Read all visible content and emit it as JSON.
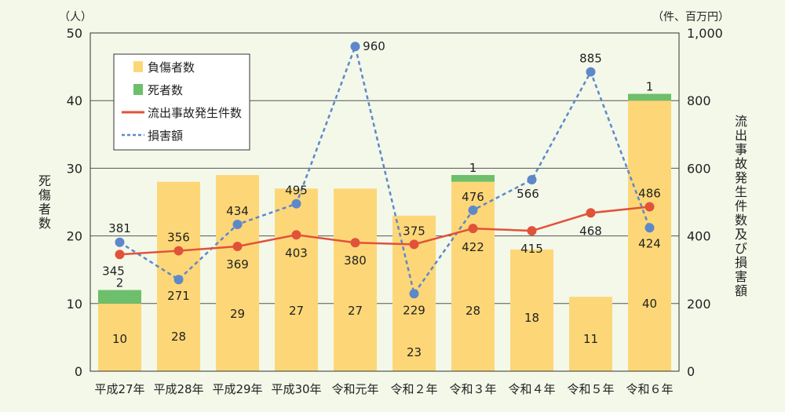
{
  "chart_data": {
    "type": "bar",
    "categories": [
      "平成27年",
      "平成28年",
      "平成29年",
      "平成30年",
      "令和元年",
      "令和２年",
      "令和３年",
      "令和４年",
      "令和５年",
      "令和６年"
    ],
    "series": [
      {
        "name": "負傷者数",
        "kind": "bar",
        "axis": "left",
        "color": "#fdd777",
        "values": [
          10,
          28,
          29,
          27,
          27,
          23,
          28,
          18,
          11,
          40
        ]
      },
      {
        "name": "死者数",
        "kind": "bar-stack",
        "axis": "left",
        "color": "#6dbf6b",
        "values": [
          2,
          0,
          0,
          0,
          0,
          0,
          1,
          0,
          0,
          1
        ],
        "labels": [
          "2",
          "",
          "",
          "",
          "",
          "",
          "1",
          "",
          "",
          "1"
        ]
      },
      {
        "name": "流出事故発生件数",
        "kind": "line",
        "axis": "right",
        "color": "#e1523a",
        "values": [
          345,
          356,
          369,
          403,
          380,
          375,
          422,
          415,
          468,
          486
        ]
      },
      {
        "name": "損害額",
        "kind": "line-dashed",
        "axis": "right",
        "color": "#5e88c9",
        "values": [
          381,
          271,
          434,
          495,
          960,
          229,
          476,
          566,
          885,
          424
        ]
      }
    ],
    "ylabel_left": "死傷者数",
    "ylabel_right": "流出事故発生件数及び損害額",
    "unit_left": "（人）",
    "unit_right": "（件、百万円）",
    "ylim_left": [
      0,
      50
    ],
    "ylim_right": [
      0,
      1000
    ],
    "yticks_left": [
      "0",
      "10",
      "20",
      "30",
      "40",
      "50"
    ],
    "yticks_right": [
      "0",
      "200",
      "400",
      "600",
      "800",
      "1,000"
    ],
    "grid": true,
    "legend_position": "top-left"
  }
}
